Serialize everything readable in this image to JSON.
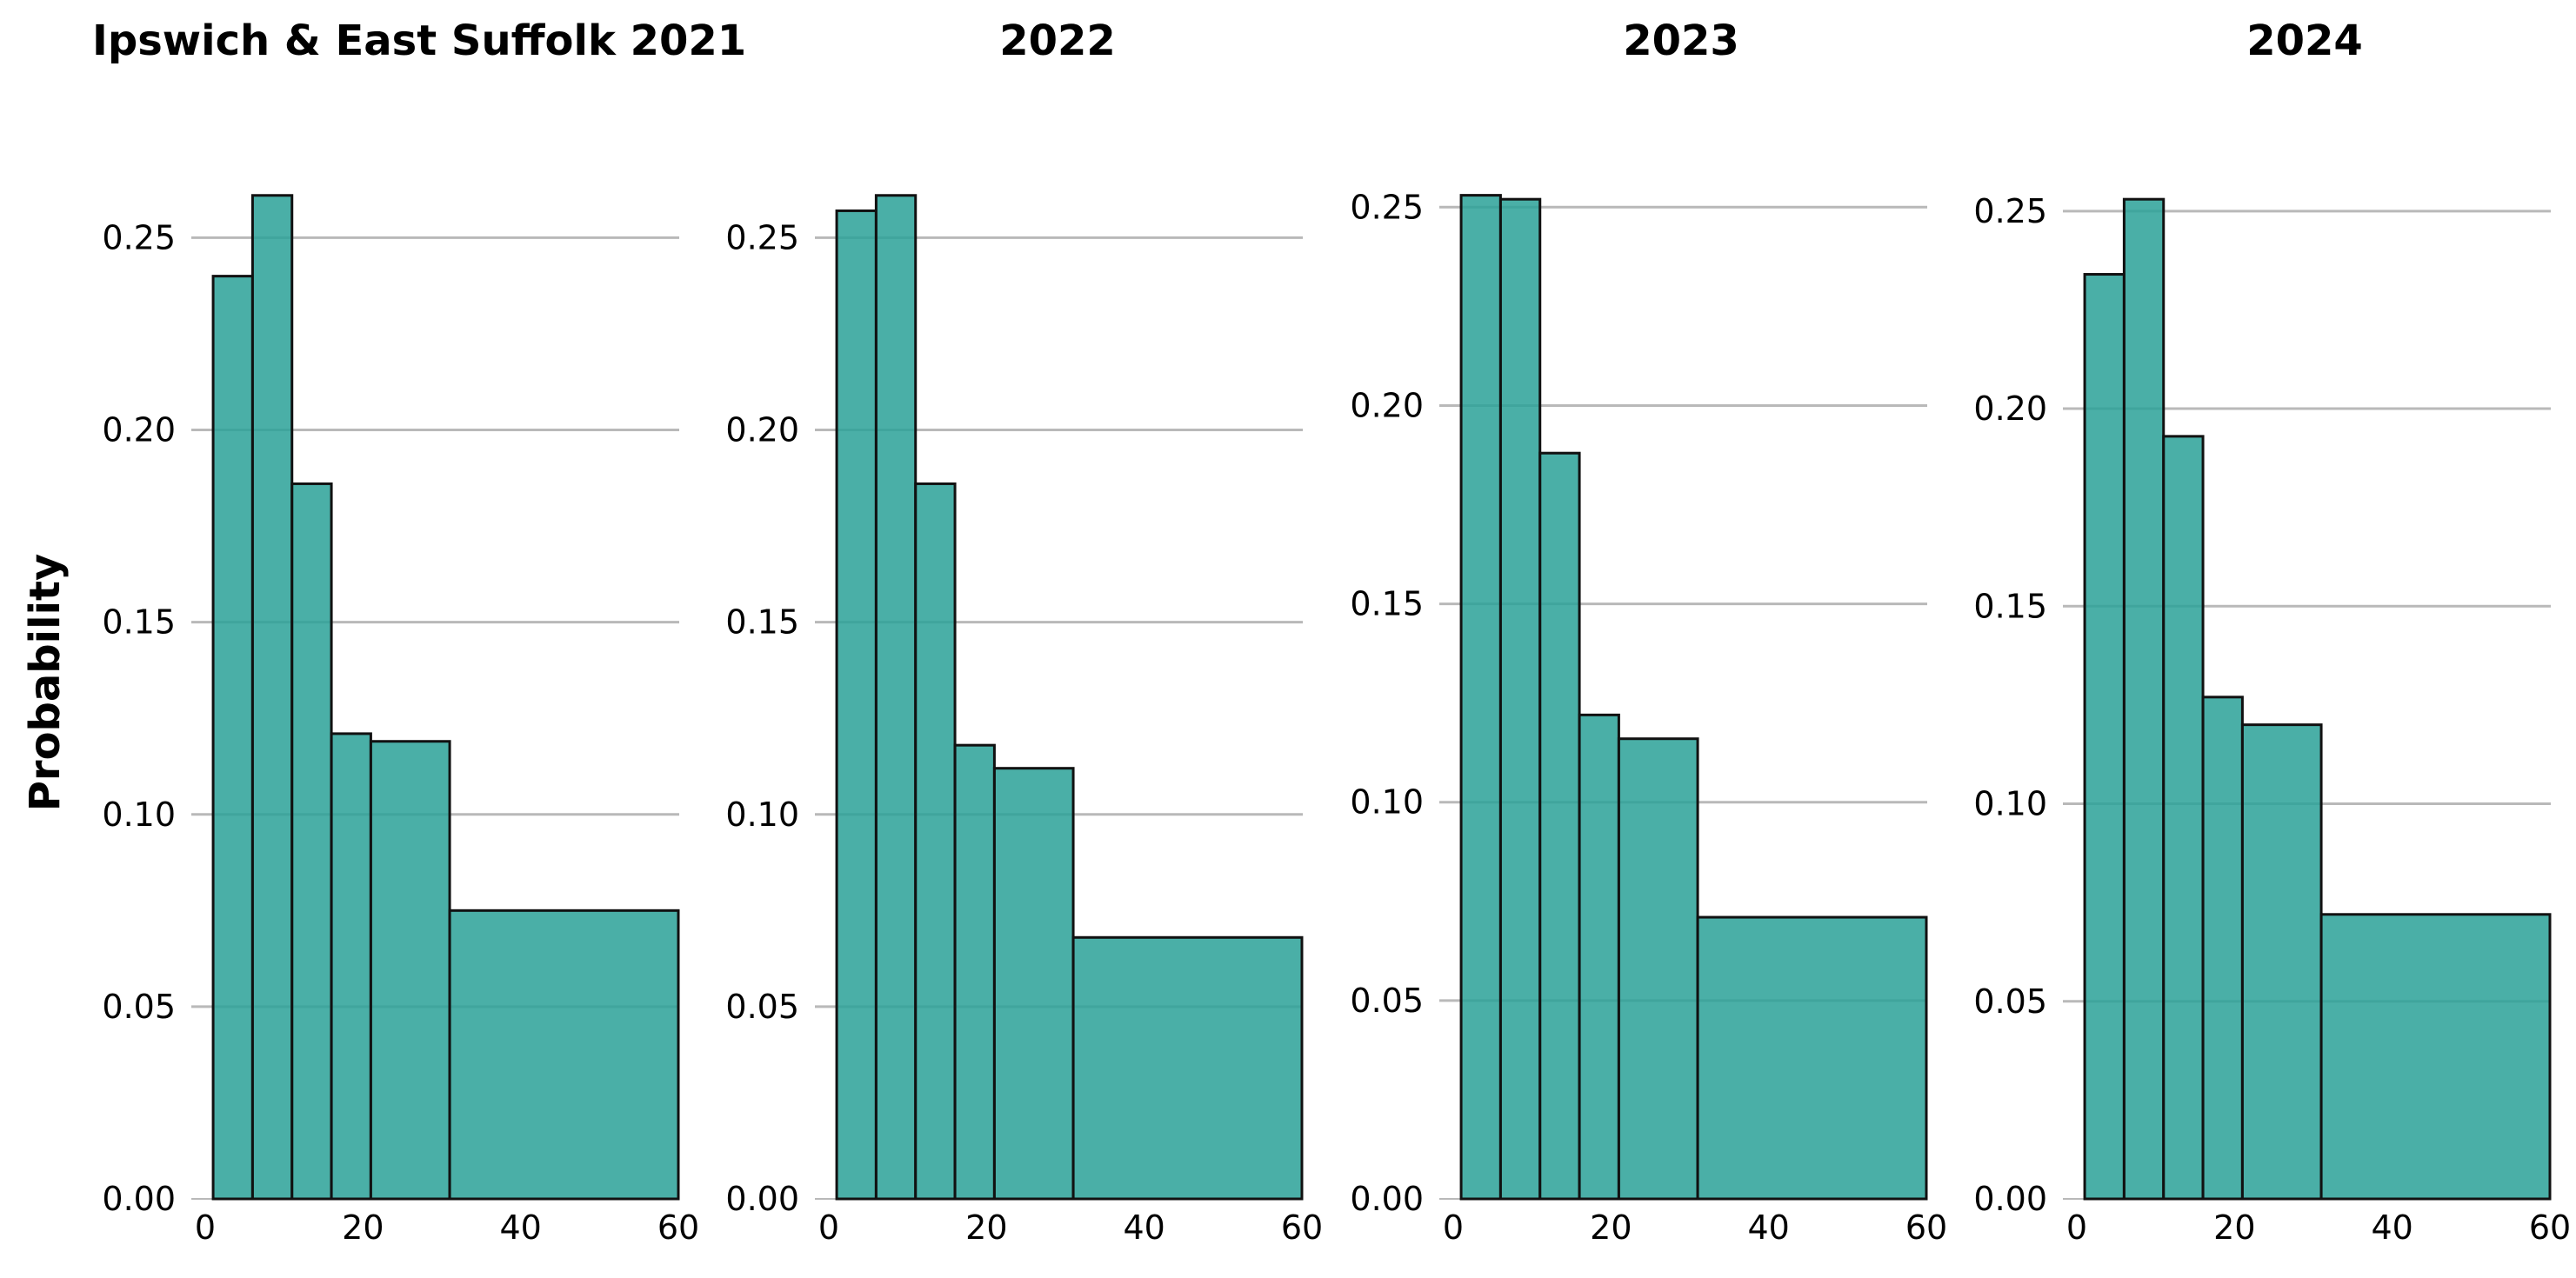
{
  "colors": {
    "bar_fill": "#2aa198",
    "bar_stroke": "#111111",
    "grid": "#b9b9b9"
  },
  "chart_data": [
    {
      "type": "histogram",
      "title": "Ipswich & East Suffolk 2021",
      "ylabel": "Probability",
      "xlim": [
        0,
        60
      ],
      "ylim": [
        0,
        0.26
      ],
      "x_ticks": [
        0,
        20,
        40,
        60
      ],
      "y_ticks": [
        0.0,
        0.05,
        0.1,
        0.15,
        0.2,
        0.25
      ],
      "grid": "horizontal",
      "bins": [
        {
          "x0": 1,
          "x1": 6,
          "value": 0.24
        },
        {
          "x0": 6,
          "x1": 11,
          "value": 0.261
        },
        {
          "x0": 11,
          "x1": 16,
          "value": 0.186
        },
        {
          "x0": 16,
          "x1": 21,
          "value": 0.121
        },
        {
          "x0": 21,
          "x1": 31,
          "value": 0.119
        },
        {
          "x0": 31,
          "x1": 60,
          "value": 0.075
        }
      ]
    },
    {
      "type": "histogram",
      "title": "2022",
      "ylabel": "",
      "xlim": [
        0,
        60
      ],
      "ylim": [
        0,
        0.26
      ],
      "x_ticks": [
        0,
        20,
        40,
        60
      ],
      "y_ticks": [
        0.0,
        0.05,
        0.1,
        0.15,
        0.2,
        0.25
      ],
      "grid": "horizontal",
      "bins": [
        {
          "x0": 1,
          "x1": 6,
          "value": 0.257
        },
        {
          "x0": 6,
          "x1": 11,
          "value": 0.261
        },
        {
          "x0": 11,
          "x1": 16,
          "value": 0.186
        },
        {
          "x0": 16,
          "x1": 21,
          "value": 0.118
        },
        {
          "x0": 21,
          "x1": 31,
          "value": 0.112
        },
        {
          "x0": 31,
          "x1": 60,
          "value": 0.068
        }
      ]
    },
    {
      "type": "histogram",
      "title": "2023",
      "ylabel": "",
      "xlim": [
        0,
        60
      ],
      "ylim": [
        0,
        0.252
      ],
      "x_ticks": [
        0,
        20,
        40,
        60
      ],
      "y_ticks": [
        0.0,
        0.05,
        0.1,
        0.15,
        0.2,
        0.25
      ],
      "grid": "horizontal",
      "bins": [
        {
          "x0": 1,
          "x1": 6,
          "value": 0.253
        },
        {
          "x0": 6,
          "x1": 11,
          "value": 0.252
        },
        {
          "x0": 11,
          "x1": 16,
          "value": 0.188
        },
        {
          "x0": 16,
          "x1": 21,
          "value": 0.122
        },
        {
          "x0": 21,
          "x1": 31,
          "value": 0.116
        },
        {
          "x0": 31,
          "x1": 60,
          "value": 0.071
        }
      ]
    },
    {
      "type": "histogram",
      "title": "2024",
      "ylabel": "",
      "xlim": [
        0,
        60
      ],
      "ylim": [
        0,
        0.253
      ],
      "x_ticks": [
        0,
        20,
        40,
        60
      ],
      "y_ticks": [
        0.0,
        0.05,
        0.1,
        0.15,
        0.2,
        0.25
      ],
      "grid": "horizontal",
      "bins": [
        {
          "x0": 1,
          "x1": 6,
          "value": 0.234
        },
        {
          "x0": 6,
          "x1": 11,
          "value": 0.253
        },
        {
          "x0": 11,
          "x1": 16,
          "value": 0.193
        },
        {
          "x0": 16,
          "x1": 21,
          "value": 0.127
        },
        {
          "x0": 21,
          "x1": 31,
          "value": 0.12
        },
        {
          "x0": 31,
          "x1": 60,
          "value": 0.072
        }
      ]
    }
  ]
}
